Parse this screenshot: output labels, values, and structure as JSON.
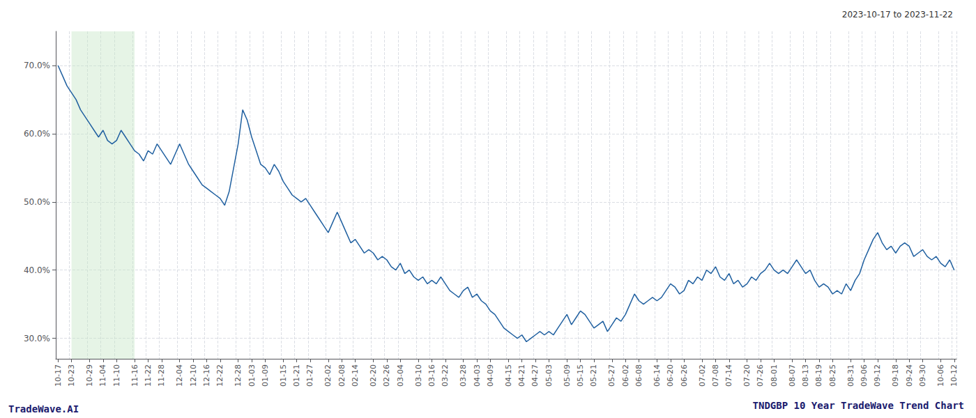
{
  "chart_data": {
    "type": "line",
    "title": "TNDGBP 10 Year TradeWave Trend Chart",
    "subtitle": "2023-10-17 to 2023-11-22",
    "annotations": [
      "TradeWave.AI"
    ],
    "color": "#2060a0",
    "grid": true,
    "highlight": {
      "from": "10-23",
      "to": "11-16",
      "color": "#c8e6c8"
    },
    "ylim": [
      27,
      75
    ],
    "yticks": [
      {
        "value": 30,
        "label": "30.0%"
      },
      {
        "value": 40,
        "label": "40.0%"
      },
      {
        "value": 50,
        "label": "50.0%"
      },
      {
        "value": 60,
        "label": "60.0%"
      },
      {
        "value": 70,
        "label": "70.0%"
      }
    ],
    "categories": [
      "10-17",
      null,
      null,
      "10-23",
      null,
      null,
      null,
      "10-29",
      null,
      null,
      "11-04",
      null,
      null,
      "11-10",
      null,
      null,
      null,
      "11-16",
      null,
      null,
      "11-22",
      null,
      null,
      "11-28",
      null,
      null,
      null,
      "12-04",
      null,
      null,
      "12-10",
      null,
      null,
      "12-16",
      null,
      null,
      "12-22",
      null,
      null,
      null,
      "12-28",
      null,
      null,
      "01-03",
      null,
      null,
      "01-09",
      null,
      null,
      null,
      "01-15",
      null,
      null,
      "01-21",
      null,
      null,
      "01-27",
      null,
      null,
      null,
      "02-02",
      null,
      null,
      "02-08",
      null,
      null,
      "02-14",
      null,
      null,
      null,
      "02-20",
      null,
      null,
      "02-26",
      null,
      null,
      "03-04",
      null,
      null,
      null,
      "03-10",
      null,
      null,
      "03-16",
      null,
      null,
      "03-22",
      null,
      null,
      null,
      "03-28",
      null,
      null,
      "04-03",
      null,
      null,
      "04-09",
      null,
      null,
      null,
      "04-15",
      null,
      null,
      "04-21",
      null,
      null,
      "04-27",
      null,
      null,
      "05-03",
      null,
      null,
      null,
      "05-09",
      null,
      null,
      "05-15",
      null,
      null,
      "05-21",
      null,
      null,
      null,
      "05-27",
      null,
      null,
      "06-02",
      null,
      null,
      "06-08",
      null,
      null,
      null,
      "06-14",
      null,
      null,
      "06-20",
      null,
      null,
      "06-26",
      null,
      null,
      null,
      "07-02",
      null,
      null,
      "07-08",
      null,
      null,
      "07-14",
      null,
      null,
      null,
      "07-20",
      null,
      null,
      "07-26",
      null,
      null,
      "08-01",
      null,
      null,
      null,
      "08-07",
      null,
      null,
      "08-13",
      null,
      null,
      "08-19",
      null,
      null,
      "08-25",
      null,
      null,
      null,
      "08-31",
      null,
      null,
      "09-06",
      null,
      null,
      "09-12",
      null,
      null,
      null,
      "09-18",
      null,
      null,
      "09-24",
      null,
      null,
      "09-30",
      null,
      null,
      null,
      "10-06",
      null,
      null,
      "10-12"
    ],
    "values": [
      70.0,
      68.5,
      67.0,
      66.0,
      65.0,
      63.5,
      62.5,
      61.5,
      60.5,
      59.5,
      60.5,
      59.0,
      58.5,
      59.0,
      60.5,
      59.5,
      58.5,
      57.5,
      57.0,
      56.0,
      57.5,
      57.0,
      58.5,
      57.5,
      56.5,
      55.5,
      57.0,
      58.5,
      57.0,
      55.5,
      54.5,
      53.5,
      52.5,
      52.0,
      51.5,
      51.0,
      50.5,
      49.5,
      51.5,
      55.0,
      58.5,
      63.5,
      62.0,
      59.5,
      57.5,
      55.5,
      55.0,
      54.0,
      55.5,
      54.5,
      53.0,
      52.0,
      51.0,
      50.5,
      50.0,
      50.5,
      49.5,
      48.5,
      47.5,
      46.5,
      45.5,
      47.0,
      48.5,
      47.0,
      45.5,
      44.0,
      44.5,
      43.5,
      42.5,
      43.0,
      42.5,
      41.5,
      42.0,
      41.5,
      40.5,
      40.0,
      41.0,
      39.5,
      40.0,
      39.0,
      38.5,
      39.0,
      38.0,
      38.5,
      38.0,
      39.0,
      38.0,
      37.0,
      36.5,
      36.0,
      37.0,
      37.5,
      36.0,
      36.5,
      35.5,
      35.0,
      34.0,
      33.5,
      32.5,
      31.5,
      31.0,
      30.5,
      30.0,
      30.5,
      29.5,
      30.0,
      30.5,
      31.0,
      30.5,
      31.0,
      30.5,
      31.5,
      32.5,
      33.5,
      32.0,
      33.0,
      34.0,
      33.5,
      32.5,
      31.5,
      32.0,
      32.5,
      31.0,
      32.0,
      33.0,
      32.5,
      33.5,
      35.0,
      36.5,
      35.5,
      35.0,
      35.5,
      36.0,
      35.5,
      36.0,
      37.0,
      38.0,
      37.5,
      36.5,
      37.0,
      38.5,
      38.0,
      39.0,
      38.5,
      40.0,
      39.5,
      40.5,
      39.0,
      38.5,
      39.5,
      38.0,
      38.5,
      37.5,
      38.0,
      39.0,
      38.5,
      39.5,
      40.0,
      41.0,
      40.0,
      39.5,
      40.0,
      39.5,
      40.5,
      41.5,
      40.5,
      39.5,
      40.0,
      38.5,
      37.5,
      38.0,
      37.5,
      36.5,
      37.0,
      36.5,
      38.0,
      37.0,
      38.5,
      39.5,
      41.5,
      43.0,
      44.5,
      45.5,
      44.0,
      43.0,
      43.5,
      42.5,
      43.5,
      44.0,
      43.5,
      42.0,
      42.5,
      43.0,
      42.0,
      41.5,
      42.0,
      41.0,
      40.5,
      41.5,
      40.0
    ]
  }
}
